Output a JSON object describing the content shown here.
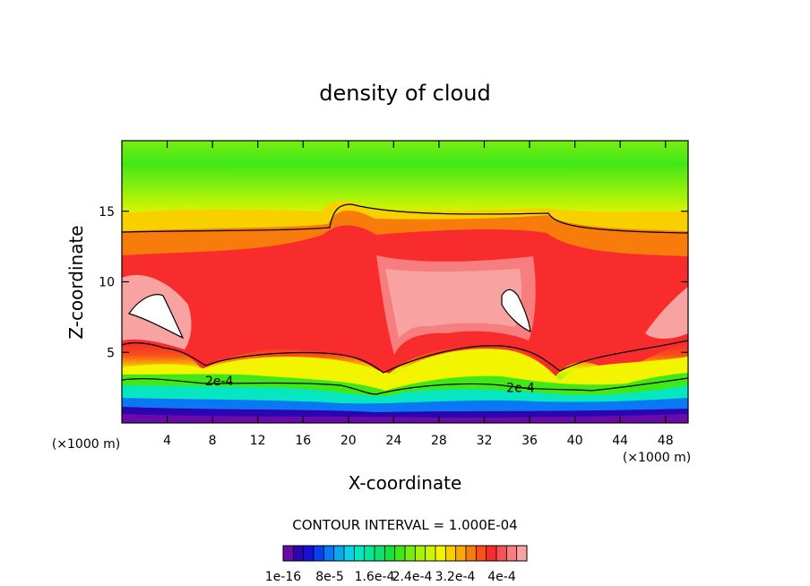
{
  "chart_data": {
    "type": "heatmap",
    "title": "density of cloud",
    "xlabel": "X-coordinate",
    "ylabel": "Z-coordinate",
    "x_unit": "(×1000 m)",
    "y_unit": "(×1000 m)",
    "xlim": [
      0,
      50
    ],
    "ylim": [
      0,
      20
    ],
    "x_ticks": [
      4,
      8,
      12,
      16,
      20,
      24,
      28,
      32,
      36,
      40,
      44,
      48
    ],
    "y_ticks": [
      5,
      10,
      15
    ],
    "contour_interval_text": "CONTOUR INTERVAL = 1.000E-04",
    "contour_labels": [
      {
        "text": "2e-4",
        "x": 8.6,
        "z": 3.0
      },
      {
        "text": "2e-4",
        "x": 35.2,
        "z": 2.5
      }
    ],
    "colorbar": {
      "colors": [
        "#6a0aa8",
        "#2c04b0",
        "#1610d8",
        "#0a3ef0",
        "#0a78f4",
        "#0aa8f0",
        "#0ad2e8",
        "#06e6c0",
        "#08e69a",
        "#10e070",
        "#18e040",
        "#40e818",
        "#78ee10",
        "#a8f208",
        "#d0f408",
        "#f2f400",
        "#f8d000",
        "#f8a808",
        "#f87c0c",
        "#f8501a",
        "#f82c2c",
        "#f65454",
        "#f67e7e",
        "#f8a2a2"
      ],
      "tick_labels": [
        "1e-16",
        "8e-5",
        "1.6e-4",
        "2.4e-4",
        "3.2e-4",
        "4e-4"
      ]
    },
    "field_levels": [
      "#6a0aa8",
      "#0a3ef0",
      "#0ad2e8",
      "#10e070",
      "#78ee10",
      "#f2f400",
      "#f8a808",
      "#f87c0c",
      "#f8501a",
      "#f82c2c",
      "#f8a2a2"
    ]
  }
}
